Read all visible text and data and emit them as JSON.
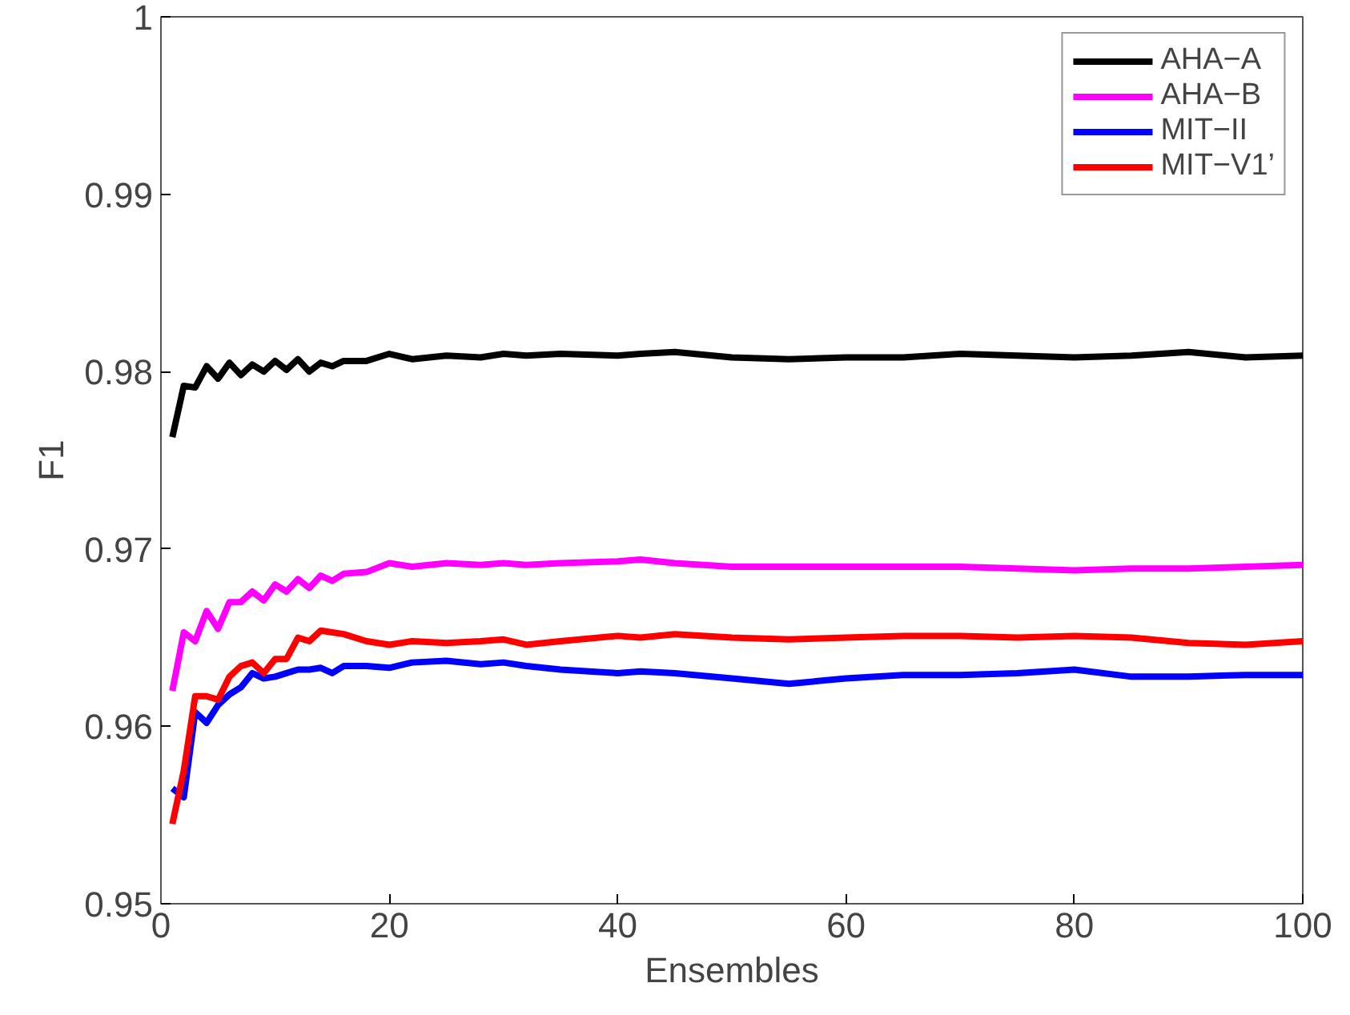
{
  "chart_data": {
    "type": "line",
    "xlabel": "Ensembles",
    "ylabel": "F1",
    "x": [
      1,
      2,
      3,
      4,
      5,
      6,
      7,
      8,
      9,
      10,
      11,
      12,
      13,
      14,
      15,
      16,
      18,
      20,
      22,
      25,
      28,
      30,
      32,
      35,
      40,
      42,
      45,
      50,
      55,
      60,
      65,
      70,
      75,
      80,
      85,
      90,
      95,
      100
    ],
    "series": [
      {
        "name": "AHA−A",
        "color": "#000000",
        "values": [
          0.9763,
          0.9792,
          0.9791,
          0.9803,
          0.9796,
          0.9805,
          0.9798,
          0.9804,
          0.98,
          0.9806,
          0.9801,
          0.9807,
          0.98,
          0.9805,
          0.9803,
          0.9806,
          0.9806,
          0.981,
          0.9807,
          0.9809,
          0.9808,
          0.981,
          0.9809,
          0.981,
          0.9809,
          0.981,
          0.9811,
          0.9808,
          0.9807,
          0.9808,
          0.9808,
          0.981,
          0.9809,
          0.9808,
          0.9809,
          0.9811,
          0.9808,
          0.9809
        ]
      },
      {
        "name": "AHA−B",
        "color": "#ff00ff",
        "values": [
          0.962,
          0.9653,
          0.9648,
          0.9665,
          0.9655,
          0.967,
          0.967,
          0.9676,
          0.9671,
          0.968,
          0.9676,
          0.9683,
          0.9678,
          0.9685,
          0.9682,
          0.9686,
          0.9687,
          0.9692,
          0.969,
          0.9692,
          0.9691,
          0.9692,
          0.9691,
          0.9692,
          0.9693,
          0.9694,
          0.9692,
          0.969,
          0.969,
          0.969,
          0.969,
          0.969,
          0.9689,
          0.9688,
          0.9689,
          0.9689,
          0.969,
          0.9691
        ]
      },
      {
        "name": "MIT−II",
        "color": "#0000ff",
        "values": [
          0.9565,
          0.956,
          0.9608,
          0.9602,
          0.9612,
          0.9618,
          0.9622,
          0.963,
          0.9627,
          0.9628,
          0.963,
          0.9632,
          0.9632,
          0.9633,
          0.963,
          0.9634,
          0.9634,
          0.9633,
          0.9636,
          0.9637,
          0.9635,
          0.9636,
          0.9634,
          0.9632,
          0.963,
          0.9631,
          0.963,
          0.9627,
          0.9624,
          0.9627,
          0.9629,
          0.9629,
          0.963,
          0.9632,
          0.9628,
          0.9628,
          0.9629,
          0.9629
        ]
      },
      {
        "name": "MIT−V1’",
        "color": "#ff0000",
        "values": [
          0.9545,
          0.9575,
          0.9617,
          0.9617,
          0.9615,
          0.9628,
          0.9634,
          0.9636,
          0.963,
          0.9638,
          0.9638,
          0.965,
          0.9648,
          0.9654,
          0.9653,
          0.9652,
          0.9648,
          0.9646,
          0.9648,
          0.9647,
          0.9648,
          0.9649,
          0.9646,
          0.9648,
          0.9651,
          0.965,
          0.9652,
          0.965,
          0.9649,
          0.965,
          0.9651,
          0.9651,
          0.965,
          0.9651,
          0.965,
          0.9647,
          0.9646,
          0.9648
        ]
      }
    ],
    "xlim": [
      0,
      100
    ],
    "xticks": [
      0,
      20,
      40,
      60,
      80,
      100
    ],
    "ylim": [
      0.95,
      1
    ],
    "yticks": [
      0.95,
      0.96,
      0.97,
      0.98,
      0.99,
      1
    ],
    "legend": "top right",
    "grid": false,
    "line_style": "solid",
    "marker": "none"
  }
}
